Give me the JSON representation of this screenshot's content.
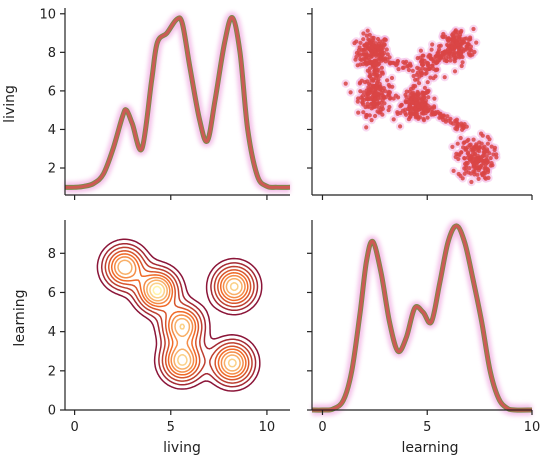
{
  "chart_data": {
    "type": "pairplot",
    "variables": [
      "living",
      "learning"
    ],
    "colors": {
      "line": "#cd5a55",
      "line_under": "#7a8a4a",
      "glow": "#f3b9e6",
      "points": "#d94545",
      "contour_outer": "#8b1538",
      "contour_inner": "#fff3a8"
    },
    "panels": {
      "top_left": {
        "type": "kde",
        "variable": "living",
        "xlim": [
          -0.5,
          11.2
        ],
        "ylim": [
          0.6,
          10.3
        ],
        "yticks": [
          2,
          4,
          6,
          8,
          10
        ],
        "x": [
          -0.5,
          0.0,
          0.5,
          1.0,
          1.5,
          2.0,
          2.5,
          2.7,
          3.0,
          3.5,
          4.0,
          4.3,
          4.8,
          5.3,
          5.6,
          6.0,
          6.5,
          6.9,
          7.3,
          7.8,
          8.2,
          8.6,
          9.0,
          9.5,
          10.0,
          10.5,
          11.2
        ],
        "density_scaled": [
          1.0,
          1.0,
          1.05,
          1.2,
          1.7,
          3.0,
          4.7,
          5.0,
          4.3,
          3.0,
          6.5,
          8.5,
          9.0,
          9.7,
          9.5,
          7.2,
          4.5,
          3.4,
          5.5,
          8.5,
          9.8,
          8.0,
          4.0,
          1.6,
          1.05,
          1.0,
          1.0
        ]
      },
      "top_right": {
        "type": "scatter",
        "x_variable": "learning",
        "y_variable": "living",
        "xlim": [
          -0.5,
          10.0
        ],
        "ylim": [
          0.6,
          10.3
        ],
        "clusters": [
          {
            "center_x": 2.4,
            "center_y": 8.0,
            "spread_x": 0.38,
            "spread_y": 0.45,
            "count": 160
          },
          {
            "center_x": 2.5,
            "center_y": 5.8,
            "spread_x": 0.4,
            "spread_y": 0.5,
            "count": 170
          },
          {
            "center_x": 4.5,
            "center_y": 5.3,
            "spread_x": 0.35,
            "spread_y": 0.45,
            "count": 160
          },
          {
            "center_x": 5.0,
            "center_y": 7.3,
            "spread_x": 0.35,
            "spread_y": 0.35,
            "count": 60
          },
          {
            "center_x": 6.4,
            "center_y": 8.3,
            "spread_x": 0.4,
            "spread_y": 0.45,
            "count": 150
          },
          {
            "center_x": 7.3,
            "center_y": 2.5,
            "spread_x": 0.42,
            "spread_y": 0.55,
            "count": 170
          }
        ],
        "bridges": [
          {
            "from": [
              4.5,
              5.3
            ],
            "to": [
              6.8,
              4.1
            ],
            "count": 70
          },
          {
            "from": [
              3.0,
              7.6
            ],
            "to": [
              4.7,
              7.0
            ],
            "count": 30
          },
          {
            "from": [
              5.3,
              7.6
            ],
            "to": [
              6.1,
              8.1
            ],
            "count": 30
          },
          {
            "from": [
              2.5,
              6.4
            ],
            "to": [
              2.4,
              7.4
            ],
            "count": 20
          }
        ]
      },
      "bottom_left": {
        "type": "kde2d_contour",
        "x_variable": "living",
        "y_variable": "learning",
        "xlim": [
          -0.5,
          11.2
        ],
        "ylim": [
          0,
          9.7
        ],
        "xticks": [
          0,
          5,
          10
        ],
        "yticks": [
          0,
          2,
          4,
          6,
          8
        ],
        "peaks": [
          {
            "x": 2.6,
            "y": 7.3,
            "strength": 0.85
          },
          {
            "x": 4.3,
            "y": 6.1,
            "strength": 1.0
          },
          {
            "x": 8.3,
            "y": 6.3,
            "strength": 0.9
          },
          {
            "x": 5.6,
            "y": 4.3,
            "strength": 0.85
          },
          {
            "x": 5.6,
            "y": 2.5,
            "strength": 0.9
          },
          {
            "x": 8.2,
            "y": 2.4,
            "strength": 0.9
          }
        ]
      },
      "bottom_right": {
        "type": "kde",
        "variable": "learning",
        "xlim": [
          -0.5,
          10.0
        ],
        "ylim": [
          0,
          9.7
        ],
        "xticks": [
          0,
          5,
          10
        ],
        "x": [
          -0.5,
          0.0,
          0.5,
          1.0,
          1.4,
          1.8,
          2.1,
          2.4,
          2.8,
          3.2,
          3.6,
          4.0,
          4.4,
          4.8,
          5.2,
          5.6,
          6.0,
          6.4,
          6.8,
          7.2,
          7.6,
          8.0,
          8.4,
          8.8,
          9.2,
          10.0
        ],
        "density_scaled": [
          0.0,
          0.0,
          0.05,
          0.5,
          2.0,
          5.0,
          7.6,
          8.6,
          7.0,
          4.5,
          3.0,
          3.7,
          5.2,
          5.0,
          4.5,
          6.5,
          8.6,
          9.4,
          8.5,
          6.6,
          4.5,
          2.0,
          0.6,
          0.1,
          0.0,
          0.0
        ]
      }
    },
    "axis_labels": {
      "x_left": "living",
      "x_right": "learning",
      "y_top": "living",
      "y_bottom": "learning"
    }
  }
}
